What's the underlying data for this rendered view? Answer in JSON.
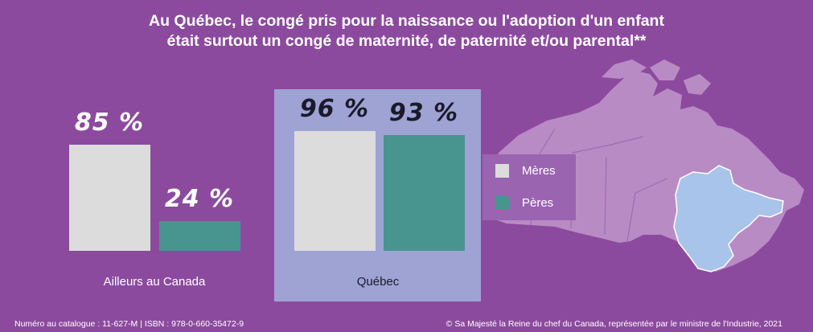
{
  "title_line1": "Au Québec, le congé pris pour la naissance ou l'adoption d'un enfant",
  "title_line2": "était surtout un congé de maternité, de paternité et/ou parental**",
  "colors": {
    "background": "#8c4a9e",
    "meres": "#dcdcdc",
    "peres": "#489590",
    "quebec_panel": "#9ea3d3",
    "quebec_map": "#a9c4ea",
    "canada_map": "#b98bc4"
  },
  "chart_data": {
    "type": "bar",
    "categories": [
      "Ailleurs au Canada",
      "Québec"
    ],
    "series": [
      {
        "name": "Mères",
        "values": [
          85,
          96
        ],
        "labels": [
          "85 %",
          "96 %"
        ]
      },
      {
        "name": "Pères",
        "values": [
          24,
          93
        ],
        "labels": [
          "24 %",
          "93 %"
        ]
      }
    ],
    "unit": "%",
    "ylim": [
      0,
      100
    ],
    "legend_position": "right",
    "grid": false
  },
  "footer": {
    "left": "Numéro au catalogue : 11-627-M  | ISBN : 978-0-660-35472-9",
    "right": "© Sa Majesté la Reine du chef du Canada, représentée par le ministre de l'Industrie, 2021"
  }
}
